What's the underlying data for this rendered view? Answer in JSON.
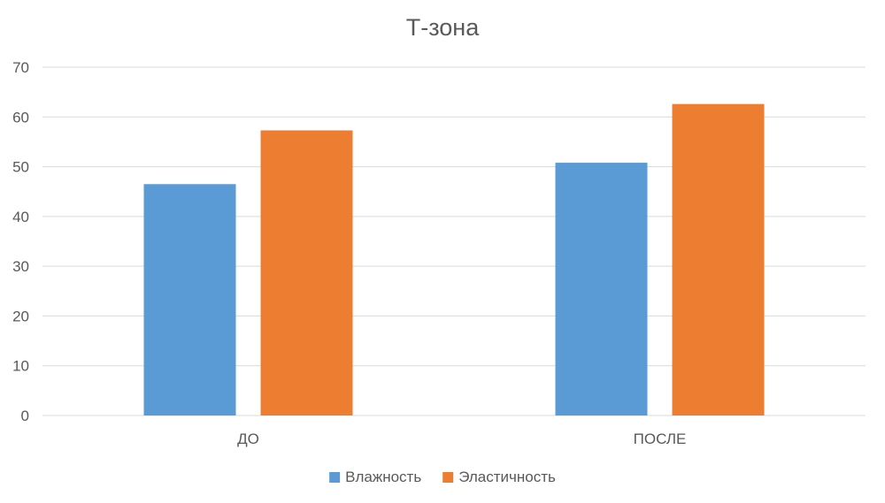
{
  "chart_data": {
    "type": "bar",
    "title": "Т-зона",
    "categories": [
      "ДО",
      "ПОСЛЕ"
    ],
    "series": [
      {
        "name": "Влажность",
        "color": "#5b9bd5",
        "values": [
          46.5,
          50.8
        ]
      },
      {
        "name": "Эластичность",
        "color": "#ed7d31",
        "values": [
          57.3,
          62.6
        ]
      }
    ],
    "ylim": [
      0,
      70
    ],
    "yticks": [
      0,
      10,
      20,
      30,
      40,
      50,
      60,
      70
    ],
    "grid": true,
    "legend_position": "bottom"
  }
}
